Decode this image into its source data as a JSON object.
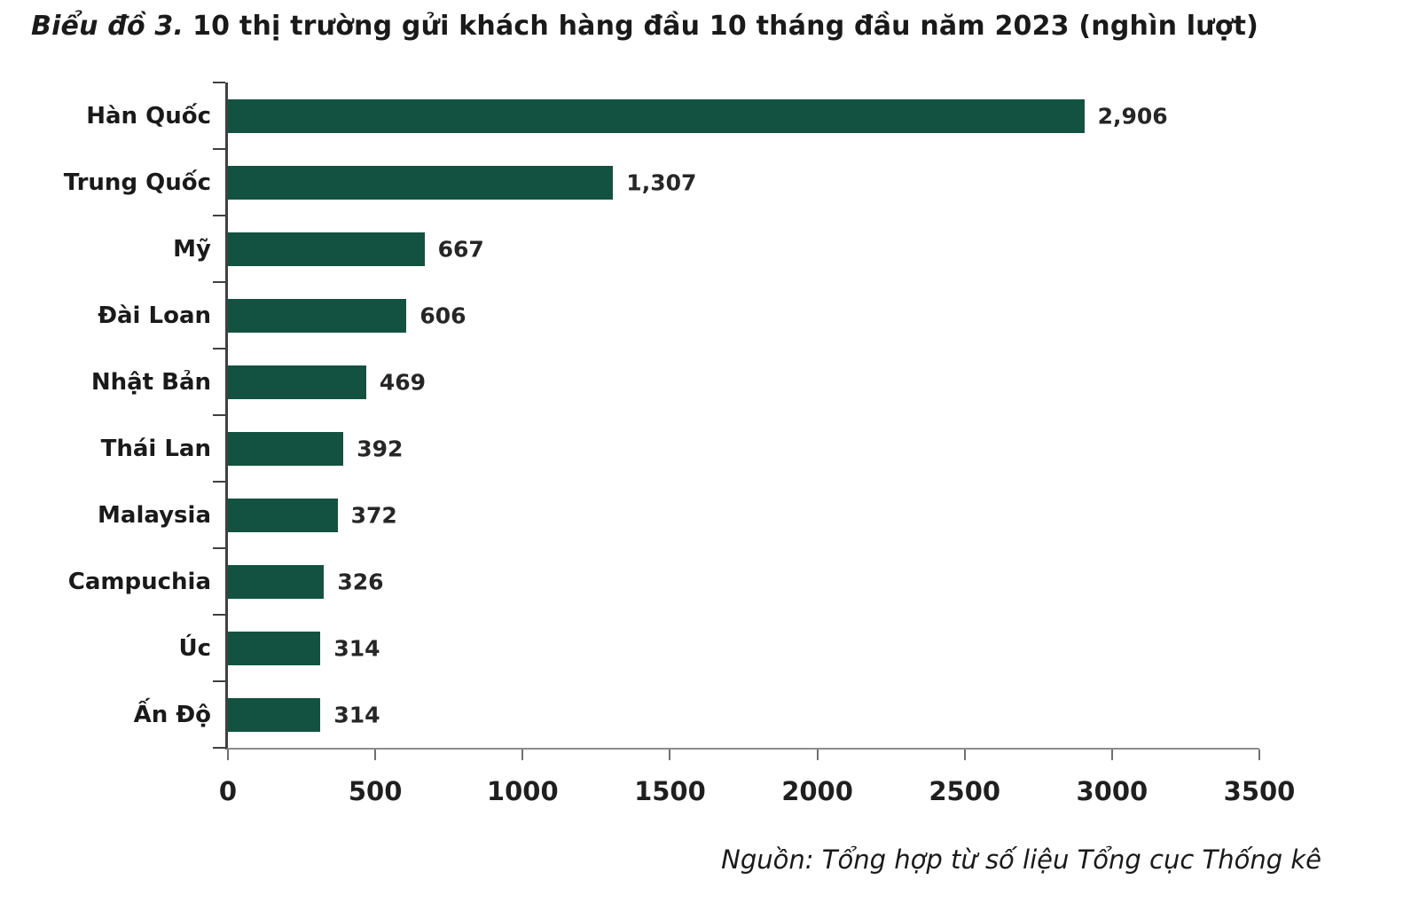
{
  "title": {
    "prefix": "Biểu đồ 3.",
    "rest": "10 thị trường gửi khách hàng đầu 10 tháng đầu năm 2023 (nghìn lượt)"
  },
  "source_note": "Nguồn: Tổng hợp từ số liệu Tổng cục Thống kê",
  "colors": {
    "bar": "#135240",
    "y_axis": "#404040",
    "x_axis": "#8c8c8c",
    "text": "#1a1a1a"
  },
  "chart_data": {
    "type": "bar",
    "orientation": "horizontal",
    "title": "Biểu đồ 3. 10 thị trường gửi khách hàng đầu 10 tháng đầu năm 2023 (nghìn lượt)",
    "categories": [
      "Hàn Quốc",
      "Trung Quốc",
      "Mỹ",
      "Đài Loan",
      "Nhật Bản",
      "Thái Lan",
      "Malaysia",
      "Campuchia",
      "Úc",
      "Ấn Độ"
    ],
    "values": [
      2906,
      1307,
      667,
      606,
      469,
      392,
      372,
      326,
      314,
      314
    ],
    "value_labels": [
      "2,906",
      "1,307",
      "667",
      "606",
      "469",
      "392",
      "372",
      "326",
      "314",
      "314"
    ],
    "xlabel": "",
    "ylabel": "",
    "xlim": [
      0,
      3500
    ],
    "x_ticks": [
      0,
      500,
      1000,
      1500,
      2000,
      2500,
      3000,
      3500
    ],
    "grid": false,
    "legend": false,
    "source": "Nguồn: Tổng hợp từ số liệu Tổng cục Thống kê"
  }
}
